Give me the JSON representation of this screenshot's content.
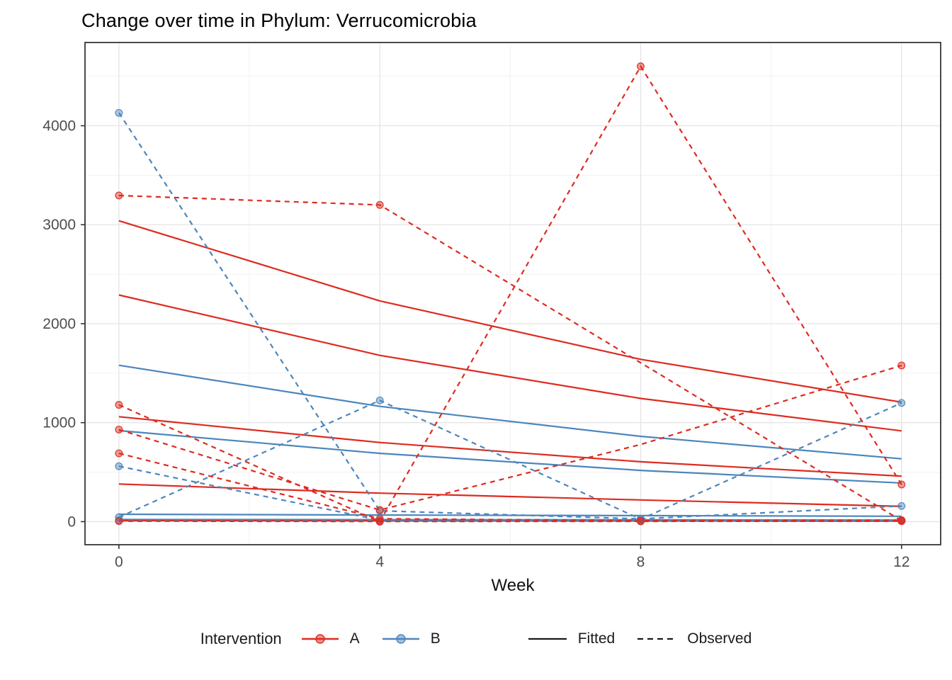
{
  "title": "Change over time in Phylum: Verrucomicrobia",
  "legend": {
    "title": "Intervention",
    "groups": [
      {
        "label": "A",
        "color": "#DE2B20"
      },
      {
        "label": "B",
        "color": "#4C86BC"
      }
    ],
    "linetypes": [
      {
        "label": "Fitted",
        "dash": "solid"
      },
      {
        "label": "Observed",
        "dash": "dashed"
      }
    ],
    "linetype_color": "#1a1a1a"
  },
  "colors": {
    "A": "#DE2B20",
    "B": "#4C86BC",
    "grid_major": "#E4E4E4",
    "grid_minor": "#F1F1F1",
    "panel_border": "#2b2b2b",
    "tick_mark": "#333333",
    "tick_label": "#4D4D4D",
    "axis_title": "#111111"
  },
  "chart_data": {
    "type": "line",
    "title": "Change over time in Phylum: Verrucomicrobia",
    "xlabel": "Week",
    "ylabel": "",
    "weeks": [
      0,
      4,
      8,
      12
    ],
    "x_ticks": [
      0,
      4,
      8,
      12
    ],
    "x_minor": [
      2,
      6,
      10
    ],
    "y_ticks": [
      0,
      1000,
      2000,
      3000,
      4000
    ],
    "y_minor": [
      500,
      1500,
      2500,
      3500,
      4500
    ],
    "xlim": [
      -0.52,
      12.6
    ],
    "ylim": [
      -233,
      4841
    ],
    "grid": true,
    "legend_position": "bottom",
    "series": [
      {
        "id": "B1-fitted",
        "group": "B",
        "style": "fitted",
        "values": [
          1580,
          1165,
          862,
          635
        ]
      },
      {
        "id": "B2-fitted",
        "group": "B",
        "style": "fitted",
        "values": [
          920,
          690,
          518,
          390
        ]
      },
      {
        "id": "B3-fitted",
        "group": "B",
        "style": "fitted",
        "values": [
          75,
          67,
          61,
          55
        ]
      },
      {
        "id": "B4-fitted",
        "group": "B",
        "style": "fitted",
        "values": [
          22,
          20,
          18,
          16
        ]
      },
      {
        "id": "A1-fitted",
        "group": "A",
        "style": "fitted",
        "values": [
          3040,
          2230,
          1640,
          1207
        ]
      },
      {
        "id": "A2-fitted",
        "group": "A",
        "style": "fitted",
        "values": [
          2290,
          1680,
          1245,
          917
        ]
      },
      {
        "id": "A3-fitted",
        "group": "A",
        "style": "fitted",
        "values": [
          1060,
          800,
          605,
          460
        ]
      },
      {
        "id": "A4-fitted",
        "group": "A",
        "style": "fitted",
        "values": [
          380,
          288,
          219,
          155
        ]
      },
      {
        "id": "A5-fitted",
        "group": "A",
        "style": "fitted",
        "values": [
          10,
          8,
          7,
          5
        ]
      },
      {
        "id": "B1-observed",
        "group": "B",
        "style": "observed",
        "values": [
          4130,
          110,
          28,
          158
        ],
        "dots": [
          0,
          4,
          8,
          12
        ]
      },
      {
        "id": "B2-observed",
        "group": "B",
        "style": "observed",
        "values": [
          560,
          15,
          8,
          10
        ],
        "dots": [
          0,
          4,
          12
        ]
      },
      {
        "id": "B3-observed",
        "group": "B",
        "style": "observed",
        "values": [
          45,
          1225,
          25,
          1199
        ],
        "dots": [
          0,
          4,
          8,
          12
        ]
      },
      {
        "id": "B4-observed",
        "group": "B",
        "style": "observed",
        "values": [
          15,
          10,
          5,
          8
        ],
        "dots": [
          0,
          8,
          12
        ]
      },
      {
        "id": "A1-observed",
        "group": "A",
        "style": "observed",
        "values": [
          3295,
          3200,
          null,
          10
        ],
        "dots": [
          0,
          4,
          12
        ]
      },
      {
        "id": "A2-observed",
        "group": "A",
        "style": "observed",
        "values": [
          1180,
          0,
          4600,
          375
        ],
        "dots": [
          0,
          4,
          8,
          12
        ]
      },
      {
        "id": "A3-observed",
        "group": "A",
        "style": "observed",
        "values": [
          930,
          118,
          780,
          1578
        ],
        "dots": [
          0,
          4,
          12
        ]
      },
      {
        "id": "A4-observed",
        "group": "A",
        "style": "observed",
        "values": [
          690,
          30,
          10,
          15
        ],
        "dots": [
          0,
          4,
          8,
          12
        ]
      },
      {
        "id": "A5-observed",
        "group": "A",
        "style": "observed",
        "values": [
          5,
          2,
          3,
          5
        ],
        "dots": [
          0,
          4,
          8,
          12
        ]
      }
    ]
  }
}
